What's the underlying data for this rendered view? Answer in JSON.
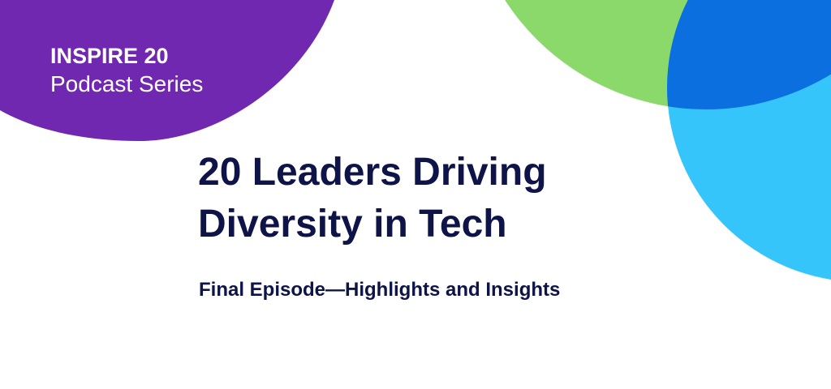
{
  "header": {
    "series": "INSPIRE 20",
    "subtitle": "Podcast Series"
  },
  "title": {
    "lines": [
      "20 Leaders Driving",
      "Diversity in Tech"
    ]
  },
  "episode": "Final Episode—Highlights and Insights"
}
